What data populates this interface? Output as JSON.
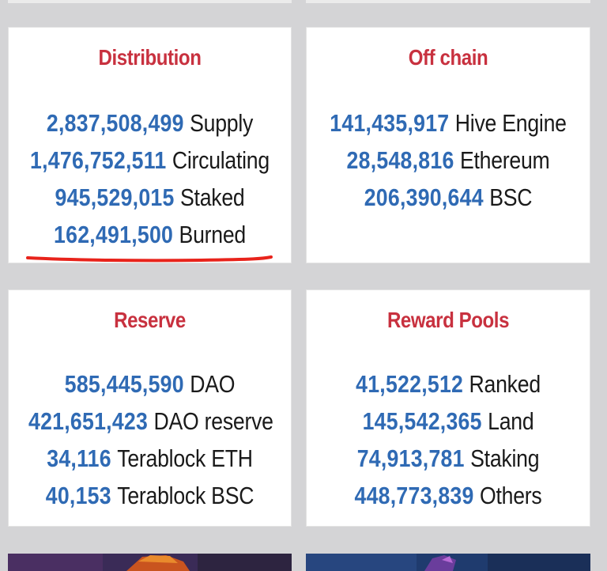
{
  "cards": {
    "distribution": {
      "title": "Distribution",
      "rows": [
        {
          "value": "2,837,508,499",
          "label": "Supply"
        },
        {
          "value": "1,476,752,511",
          "label": "Circulating"
        },
        {
          "value": "945,529,015",
          "label": "Staked"
        },
        {
          "value": "162,491,500",
          "label": "Burned"
        }
      ]
    },
    "off_chain": {
      "title": "Off chain",
      "rows": [
        {
          "value": "141,435,917",
          "label": "Hive Engine"
        },
        {
          "value": "28,548,816",
          "label": "Ethereum"
        },
        {
          "value": "206,390,644",
          "label": "BSC"
        }
      ]
    },
    "reserve": {
      "title": "Reserve",
      "rows": [
        {
          "value": "585,445,590",
          "label": "DAO"
        },
        {
          "value": "421,651,423",
          "label": "DAO reserve"
        },
        {
          "value": "34,116",
          "label": "Terablock ETH"
        },
        {
          "value": "40,153",
          "label": "Terablock BSC"
        }
      ]
    },
    "reward_pools": {
      "title": "Reward Pools",
      "rows": [
        {
          "value": "41,522,512",
          "label": "Ranked"
        },
        {
          "value": "145,542,365",
          "label": "Land"
        },
        {
          "value": "74,913,781",
          "label": "Staking"
        },
        {
          "value": "448,773,839",
          "label": "Others"
        }
      ]
    }
  },
  "colors": {
    "title": "#c8313f",
    "number": "#2f6ab4",
    "label": "#1a1a1a",
    "background": "#d4d4d6",
    "card": "#ffffff",
    "annotation": "#e8231b"
  }
}
